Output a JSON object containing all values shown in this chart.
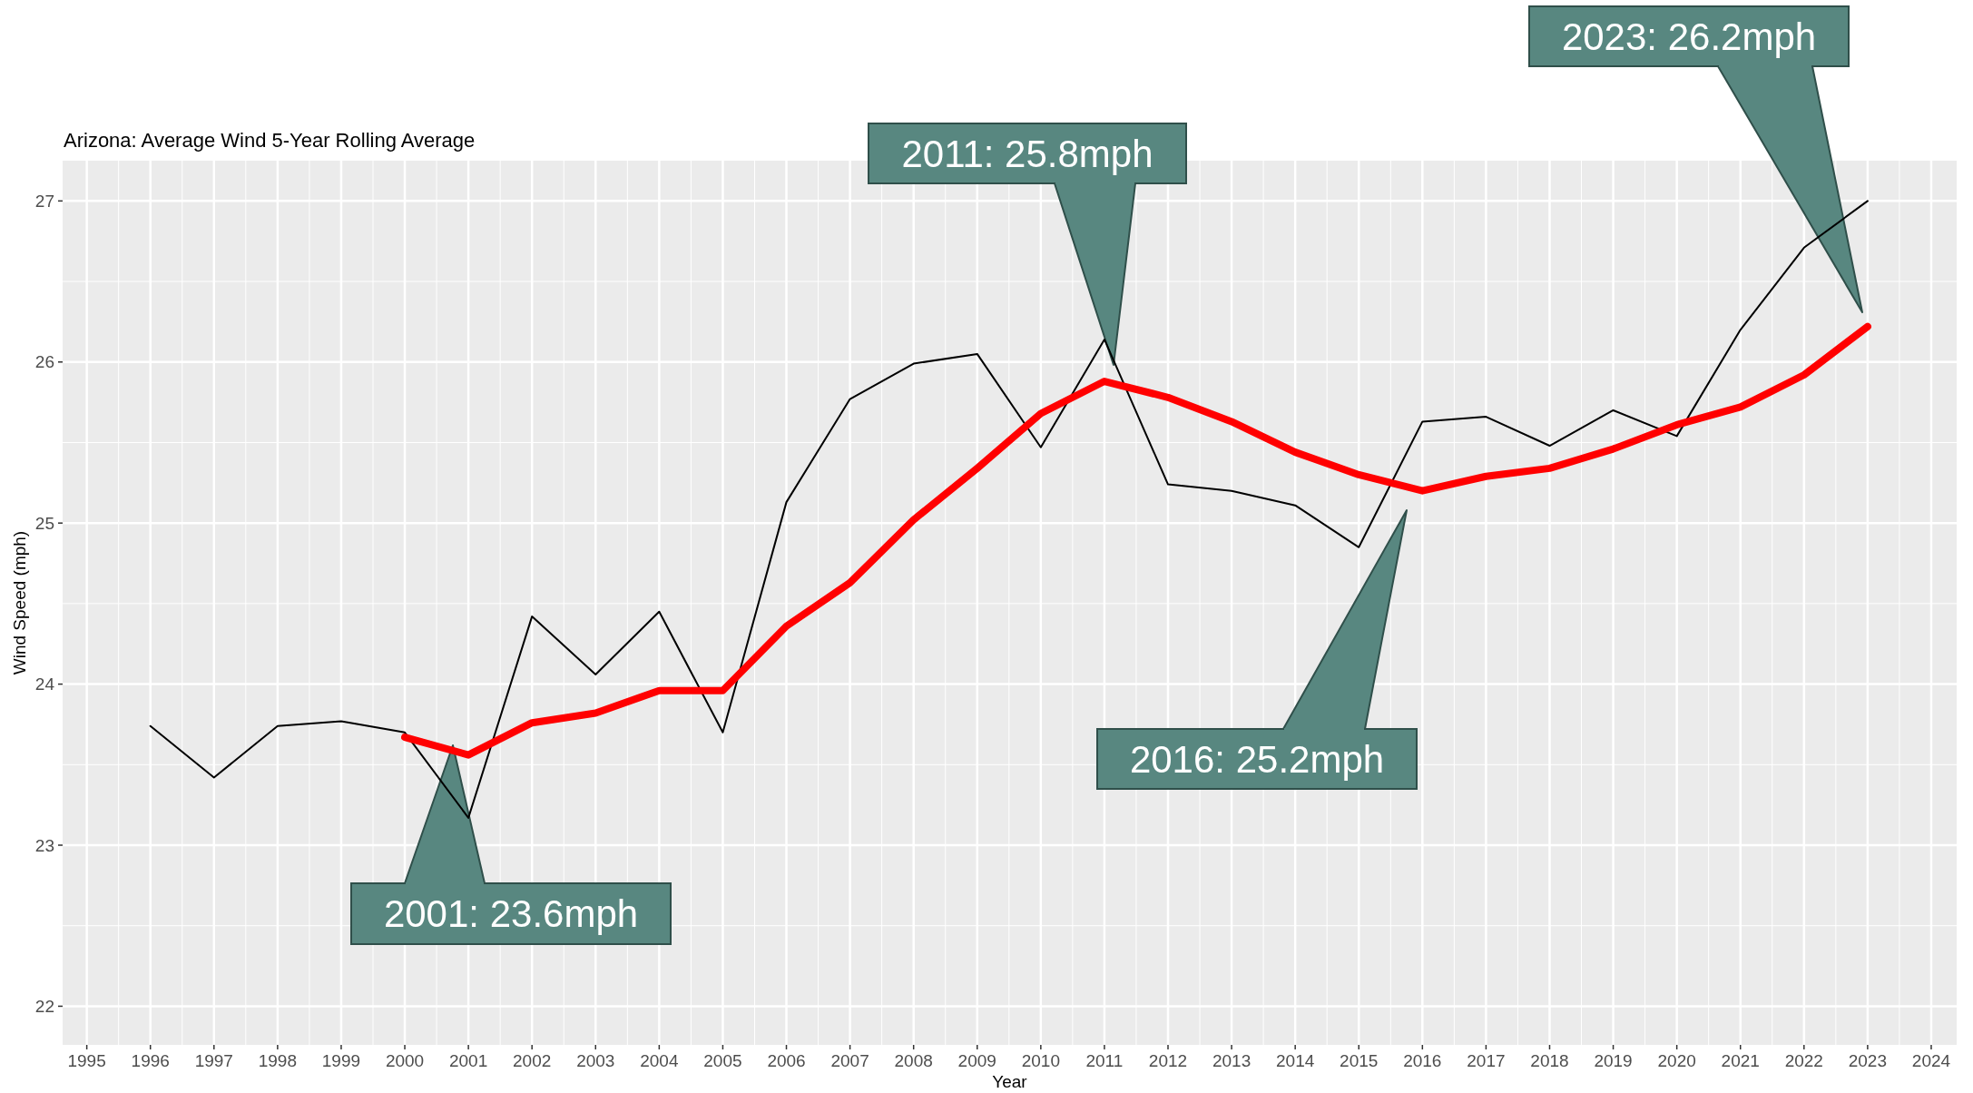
{
  "chart_data": {
    "type": "line",
    "title": "Arizona: Average Wind 5-Year Rolling Average",
    "xlabel": "Year",
    "ylabel": "Wind Speed (mph)",
    "x": [
      1996,
      1997,
      1998,
      1999,
      2000,
      2001,
      2002,
      2003,
      2004,
      2005,
      2006,
      2007,
      2008,
      2009,
      2010,
      2011,
      2012,
      2013,
      2014,
      2015,
      2016,
      2017,
      2018,
      2019,
      2020,
      2021,
      2022,
      2023
    ],
    "series": [
      {
        "color": "#000000",
        "values": [
          23.74,
          23.42,
          23.74,
          23.77,
          23.7,
          23.17,
          24.42,
          24.06,
          24.45,
          23.7,
          25.13,
          25.77,
          25.99,
          26.05,
          25.47,
          26.14,
          25.24,
          25.2,
          25.11,
          24.85,
          25.63,
          25.66,
          25.48,
          25.7,
          25.54,
          26.2,
          26.71,
          27.0
        ]
      },
      {
        "color": "#ff0000",
        "values": [
          null,
          null,
          null,
          null,
          23.67,
          23.56,
          23.76,
          23.82,
          23.96,
          23.96,
          24.36,
          24.63,
          25.02,
          25.34,
          25.68,
          25.88,
          25.78,
          25.63,
          25.44,
          25.3,
          25.2,
          25.29,
          25.34,
          25.46,
          25.61,
          25.72,
          25.92,
          26.22
        ]
      }
    ],
    "xlim": [
      1994.62,
      2024.4
    ],
    "xticks": [
      1995,
      1996,
      1997,
      1998,
      1999,
      2000,
      2001,
      2002,
      2003,
      2004,
      2005,
      2006,
      2007,
      2008,
      2009,
      2010,
      2011,
      2012,
      2013,
      2014,
      2015,
      2016,
      2017,
      2018,
      2019,
      2020,
      2021,
      2022,
      2023,
      2024
    ],
    "ylim": [
      21.76,
      27.25
    ],
    "yticks": [
      22,
      23,
      24,
      25,
      26,
      27
    ],
    "grid": true,
    "annotations": [
      "2001: 23.6mph",
      "2011: 25.8mph",
      "2016: 25.2mph",
      "2023: 26.2mph"
    ]
  }
}
